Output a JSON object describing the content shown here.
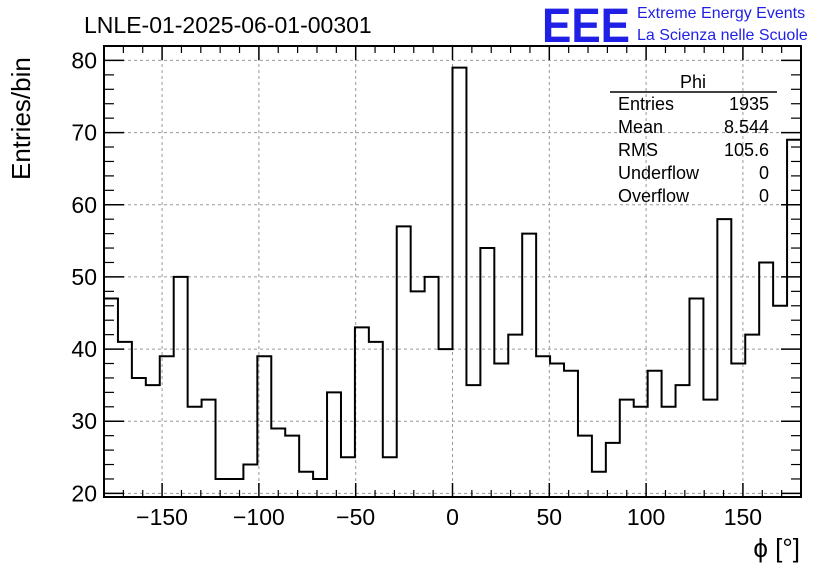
{
  "chart_data": {
    "type": "histogram",
    "title": "LNLE-01-2025-06-01-00301",
    "xlabel": "ϕ [°]",
    "ylabel": "Entries/bin",
    "xlim": [
      -180,
      180
    ],
    "ylim": [
      19.5,
      82
    ],
    "x_ticks": [
      -150,
      -100,
      -50,
      0,
      50,
      100,
      150
    ],
    "y_ticks": [
      20,
      30,
      40,
      50,
      60,
      70,
      80
    ],
    "grid": true,
    "bin_edges_start": -180,
    "bin_width": 8.372,
    "values": [
      47,
      41,
      36,
      35,
      39,
      50,
      32,
      33,
      22,
      22,
      24,
      39,
      29,
      28,
      23,
      22,
      34,
      25,
      43,
      41,
      25,
      57,
      48,
      50,
      40,
      79,
      35,
      54,
      38,
      42,
      56,
      39,
      38,
      37,
      28,
      23,
      27,
      33,
      32,
      37,
      32,
      35,
      47,
      33,
      58,
      38,
      42,
      52,
      46,
      69
    ],
    "stats": {
      "name": "Phi",
      "rows": [
        {
          "label": "Entries",
          "value": "1935"
        },
        {
          "label": "Mean",
          "value": "8.544"
        },
        {
          "label": "RMS",
          "value": "105.6"
        },
        {
          "label": "Underflow",
          "value": "0"
        },
        {
          "label": "Overflow",
          "value": "0"
        }
      ]
    }
  },
  "logo": {
    "text": "EEE",
    "line1": "Extreme Energy Events",
    "line2": "La Scienza nelle Scuole"
  }
}
